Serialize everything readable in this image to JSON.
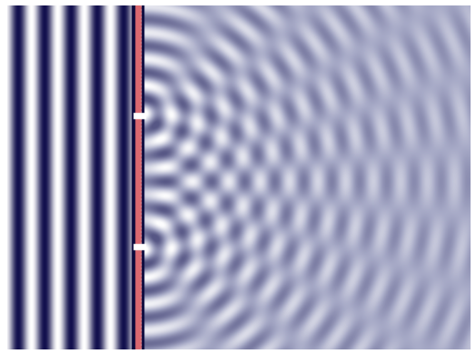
{
  "scene": {
    "colors": {
      "background": "#ffffff",
      "wave_dark": "#12104d",
      "wave_light": "#ffffff",
      "wave_mid": "#a7aac7",
      "barrier": "#d9676f",
      "slit_highlight": "#ffffff"
    },
    "slit_count": 2
  }
}
